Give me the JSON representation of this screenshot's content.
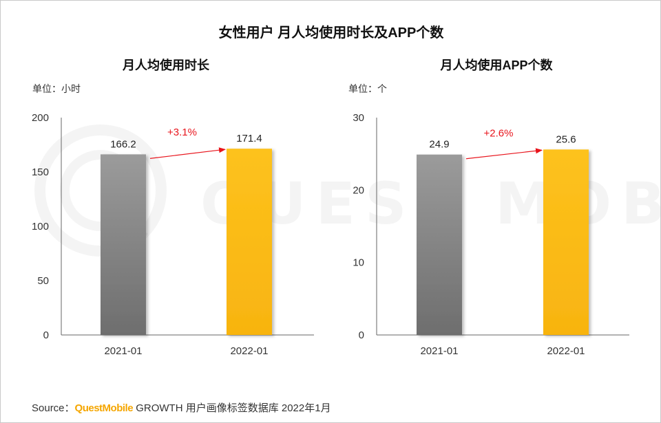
{
  "main_title": "女性用户 月人均使用时长及APP个数",
  "watermark": "QUEST MOBILE",
  "charts": [
    {
      "subtitle": "月人均使用时长",
      "unit": "单位：小时"
    },
    {
      "subtitle": "月人均使用APP个数",
      "unit": "单位：个"
    }
  ],
  "chart_data": [
    {
      "type": "bar",
      "title": "月人均使用时长",
      "unit": "单位：小时",
      "categories": [
        "2021-01",
        "2022-01"
      ],
      "values": [
        166.2,
        171.4
      ],
      "labels": [
        "166.2",
        "171.4"
      ],
      "ylim": [
        0,
        200
      ],
      "yticks": [
        0,
        50,
        100,
        150,
        200
      ],
      "growth_label": "+3.1%",
      "colors": [
        "#8c8c8c",
        "#fbbc1b"
      ]
    },
    {
      "type": "bar",
      "title": "月人均使用APP个数",
      "unit": "单位：个",
      "categories": [
        "2021-01",
        "2022-01"
      ],
      "values": [
        24.9,
        25.6
      ],
      "labels": [
        "24.9",
        "25.6"
      ],
      "ylim": [
        0,
        30
      ],
      "yticks": [
        0,
        10,
        20,
        30
      ],
      "growth_label": "+2.6%",
      "colors": [
        "#8c8c8c",
        "#fbbc1b"
      ]
    }
  ],
  "source": {
    "prefix": "Source：",
    "brand": "QuestMobile",
    "suffix": " GROWTH 用户画像标签数据库 2022年1月"
  }
}
